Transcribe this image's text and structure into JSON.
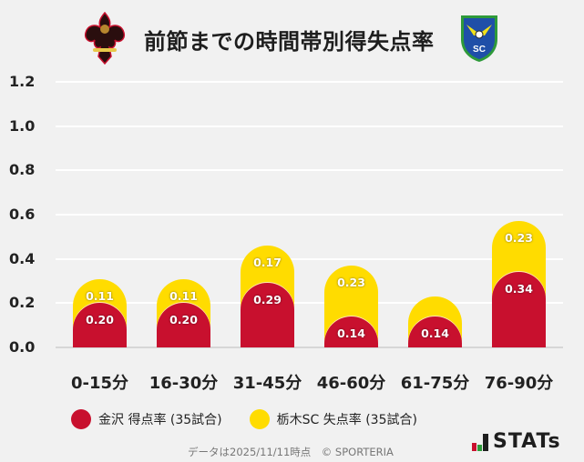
{
  "header": {
    "title": "前節までの時間帯別得失点率",
    "home_logo": "kanazawa-crest-icon",
    "away_logo": "tochigi-sc-crest-icon"
  },
  "colors": {
    "home": "#c8102e",
    "away": "#ffdc00",
    "background": "#f1f1f1",
    "grid": "#ffffff"
  },
  "chart_data": {
    "type": "bar",
    "stacked": true,
    "title": "前節までの時間帯別得失点率",
    "xlabel": "",
    "ylabel": "",
    "ylim": [
      0,
      1.2
    ],
    "yticks": [
      "0.0",
      "0.2",
      "0.4",
      "0.6",
      "0.8",
      "1.0",
      "1.2"
    ],
    "grid": true,
    "legend_position": "bottom",
    "categories": [
      "0-15分",
      "16-30分",
      "31-45分",
      "46-60分",
      "61-75分",
      "76-90分"
    ],
    "series": [
      {
        "name": "金沢 得点率 (35試合)",
        "color": "#c8102e",
        "values": [
          0.2,
          0.2,
          0.29,
          0.14,
          0.14,
          0.34
        ],
        "labels": [
          "0.20",
          "0.20",
          "0.29",
          "0.14",
          "0.14",
          "0.34"
        ]
      },
      {
        "name": "栃木SC 失点率 (35試合)",
        "color": "#ffdc00",
        "values": [
          0.11,
          0.11,
          0.17,
          0.23,
          0.09,
          0.23
        ],
        "labels": [
          "0.11",
          "0.11",
          "0.17",
          "0.23",
          "",
          "0.23"
        ]
      }
    ]
  },
  "legend": {
    "items": [
      {
        "label": "金沢 得点率 (35試合)"
      },
      {
        "label": "栃木SC 失点率 (35試合)"
      }
    ]
  },
  "footer": {
    "text": "データは2025/11/11時点　© SPORTERIA",
    "brand": "STATs"
  }
}
